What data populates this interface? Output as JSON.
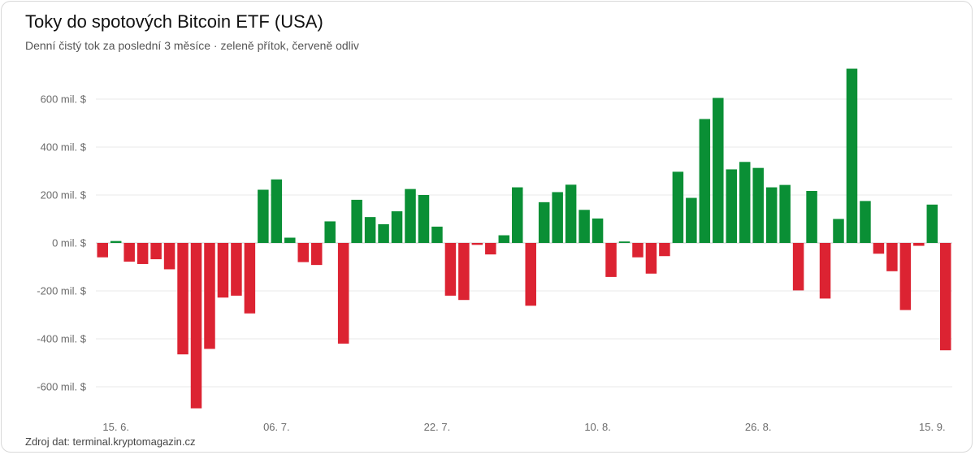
{
  "header": {
    "title": "Toky do spotových Bitcoin ETF (USA)",
    "subtitle": "Denní čistý tok za poslední 3 měsíce · zeleně přítok, červeně odliv"
  },
  "footer": {
    "source": "Zdroj dat: terminal.kryptomagazin.cz"
  },
  "colors": {
    "inflow": "#0a8f35",
    "outflow": "#dc2332",
    "grid": "#e9e9e9",
    "zero": "#cfcfcf"
  },
  "chart_data": {
    "type": "bar",
    "title": "Toky do spotových Bitcoin ETF (USA)",
    "ylabel": "",
    "xlabel": "",
    "ylim": [
      -700,
      750
    ],
    "yticks": [
      600,
      400,
      200,
      0,
      -200,
      -400,
      -600
    ],
    "ytick_labels": [
      "600 mil. $",
      "400 mil. $",
      "200 mil. $",
      "0 mil. $",
      "-200 mil. $",
      "-400 mil. $",
      "-600 mil. $"
    ],
    "xtick_labels": [
      {
        "label": "15. 6.",
        "index": 1
      },
      {
        "label": "06. 7.",
        "index": 13
      },
      {
        "label": "22. 7.",
        "index": 25
      },
      {
        "label": "10. 8.",
        "index": 37
      },
      {
        "label": "26. 8.",
        "index": 49
      },
      {
        "label": "15. 9.",
        "index": 62
      }
    ],
    "grid": true,
    "values": [
      -60,
      8,
      -78,
      -88,
      -68,
      -110,
      -465,
      -690,
      -442,
      -228,
      -220,
      -294,
      222,
      265,
      22,
      -80,
      -92,
      90,
      -420,
      180,
      108,
      78,
      132,
      225,
      200,
      68,
      -220,
      -238,
      -8,
      -48,
      32,
      232,
      -262,
      170,
      212,
      243,
      138,
      102,
      -142,
      6,
      -60,
      -128,
      -55,
      297,
      188,
      517,
      605,
      307,
      338,
      313,
      232,
      242,
      -198,
      217,
      -232,
      100,
      727,
      175,
      -45,
      -118,
      -280,
      -12,
      160,
      -448
    ],
    "legend": "none"
  }
}
